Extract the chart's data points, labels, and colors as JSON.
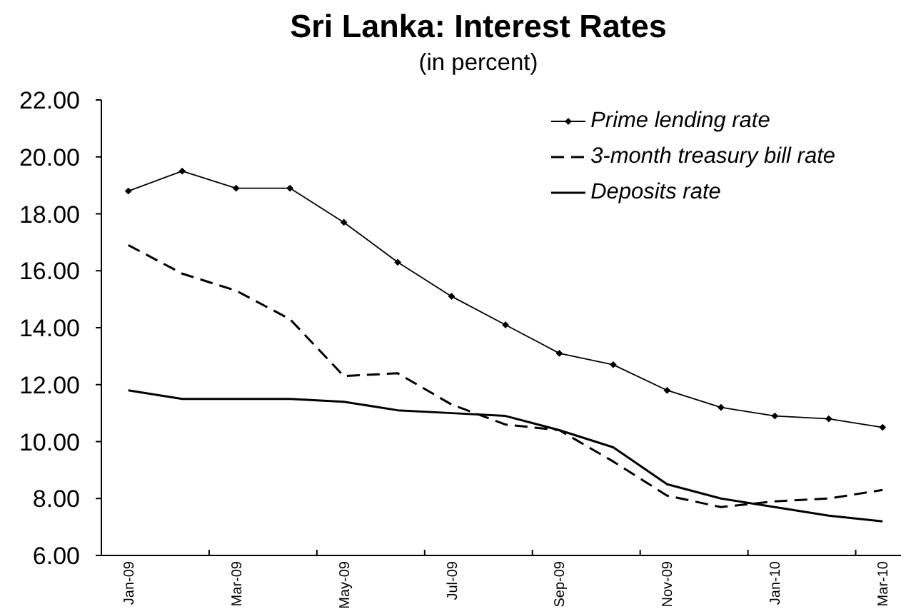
{
  "chart_data": {
    "type": "line",
    "title": "Sri Lanka: Interest Rates",
    "subtitle": "(in percent)",
    "categories": [
      "Jan-09",
      null,
      "Mar-09",
      null,
      "May-09",
      null,
      "Jul-09",
      null,
      "Sep-09",
      null,
      "Nov-09",
      null,
      "Jan-10",
      null,
      "Mar-10"
    ],
    "series": [
      {
        "name": "Prime lending rate",
        "color": "#000000",
        "marker": "diamond",
        "line_style": "solid",
        "values": [
          18.8,
          19.5,
          18.9,
          18.9,
          17.7,
          16.3,
          15.1,
          14.1,
          13.1,
          12.7,
          11.8,
          11.2,
          10.9,
          10.8,
          10.5
        ]
      },
      {
        "name": "3-month treasury bill rate",
        "color": "#000000",
        "marker": "none",
        "line_style": "dashed",
        "values": [
          16.9,
          15.9,
          15.3,
          14.3,
          12.3,
          12.4,
          11.3,
          10.6,
          10.4,
          9.3,
          8.1,
          7.7,
          7.9,
          8.0,
          8.3
        ]
      },
      {
        "name": "Deposits rate",
        "color": "#000000",
        "marker": "none",
        "line_style": "solid",
        "values": [
          11.8,
          11.5,
          11.5,
          11.5,
          11.4,
          11.1,
          11.0,
          10.9,
          10.4,
          9.8,
          8.5,
          8.0,
          7.7,
          7.4,
          7.2
        ]
      }
    ],
    "ylim": [
      6,
      22
    ],
    "yticks": [
      {
        "value": 6,
        "label": "6.00"
      },
      {
        "value": 8,
        "label": "8.00"
      },
      {
        "value": 10,
        "label": "10.00"
      },
      {
        "value": 12,
        "label": "12.00"
      },
      {
        "value": 14,
        "label": "14.00"
      },
      {
        "value": 16,
        "label": "16.00"
      },
      {
        "value": 18,
        "label": "18.00"
      },
      {
        "value": 20,
        "label": "20.00"
      },
      {
        "value": 22,
        "label": "22.00"
      }
    ],
    "legend": "top right"
  }
}
